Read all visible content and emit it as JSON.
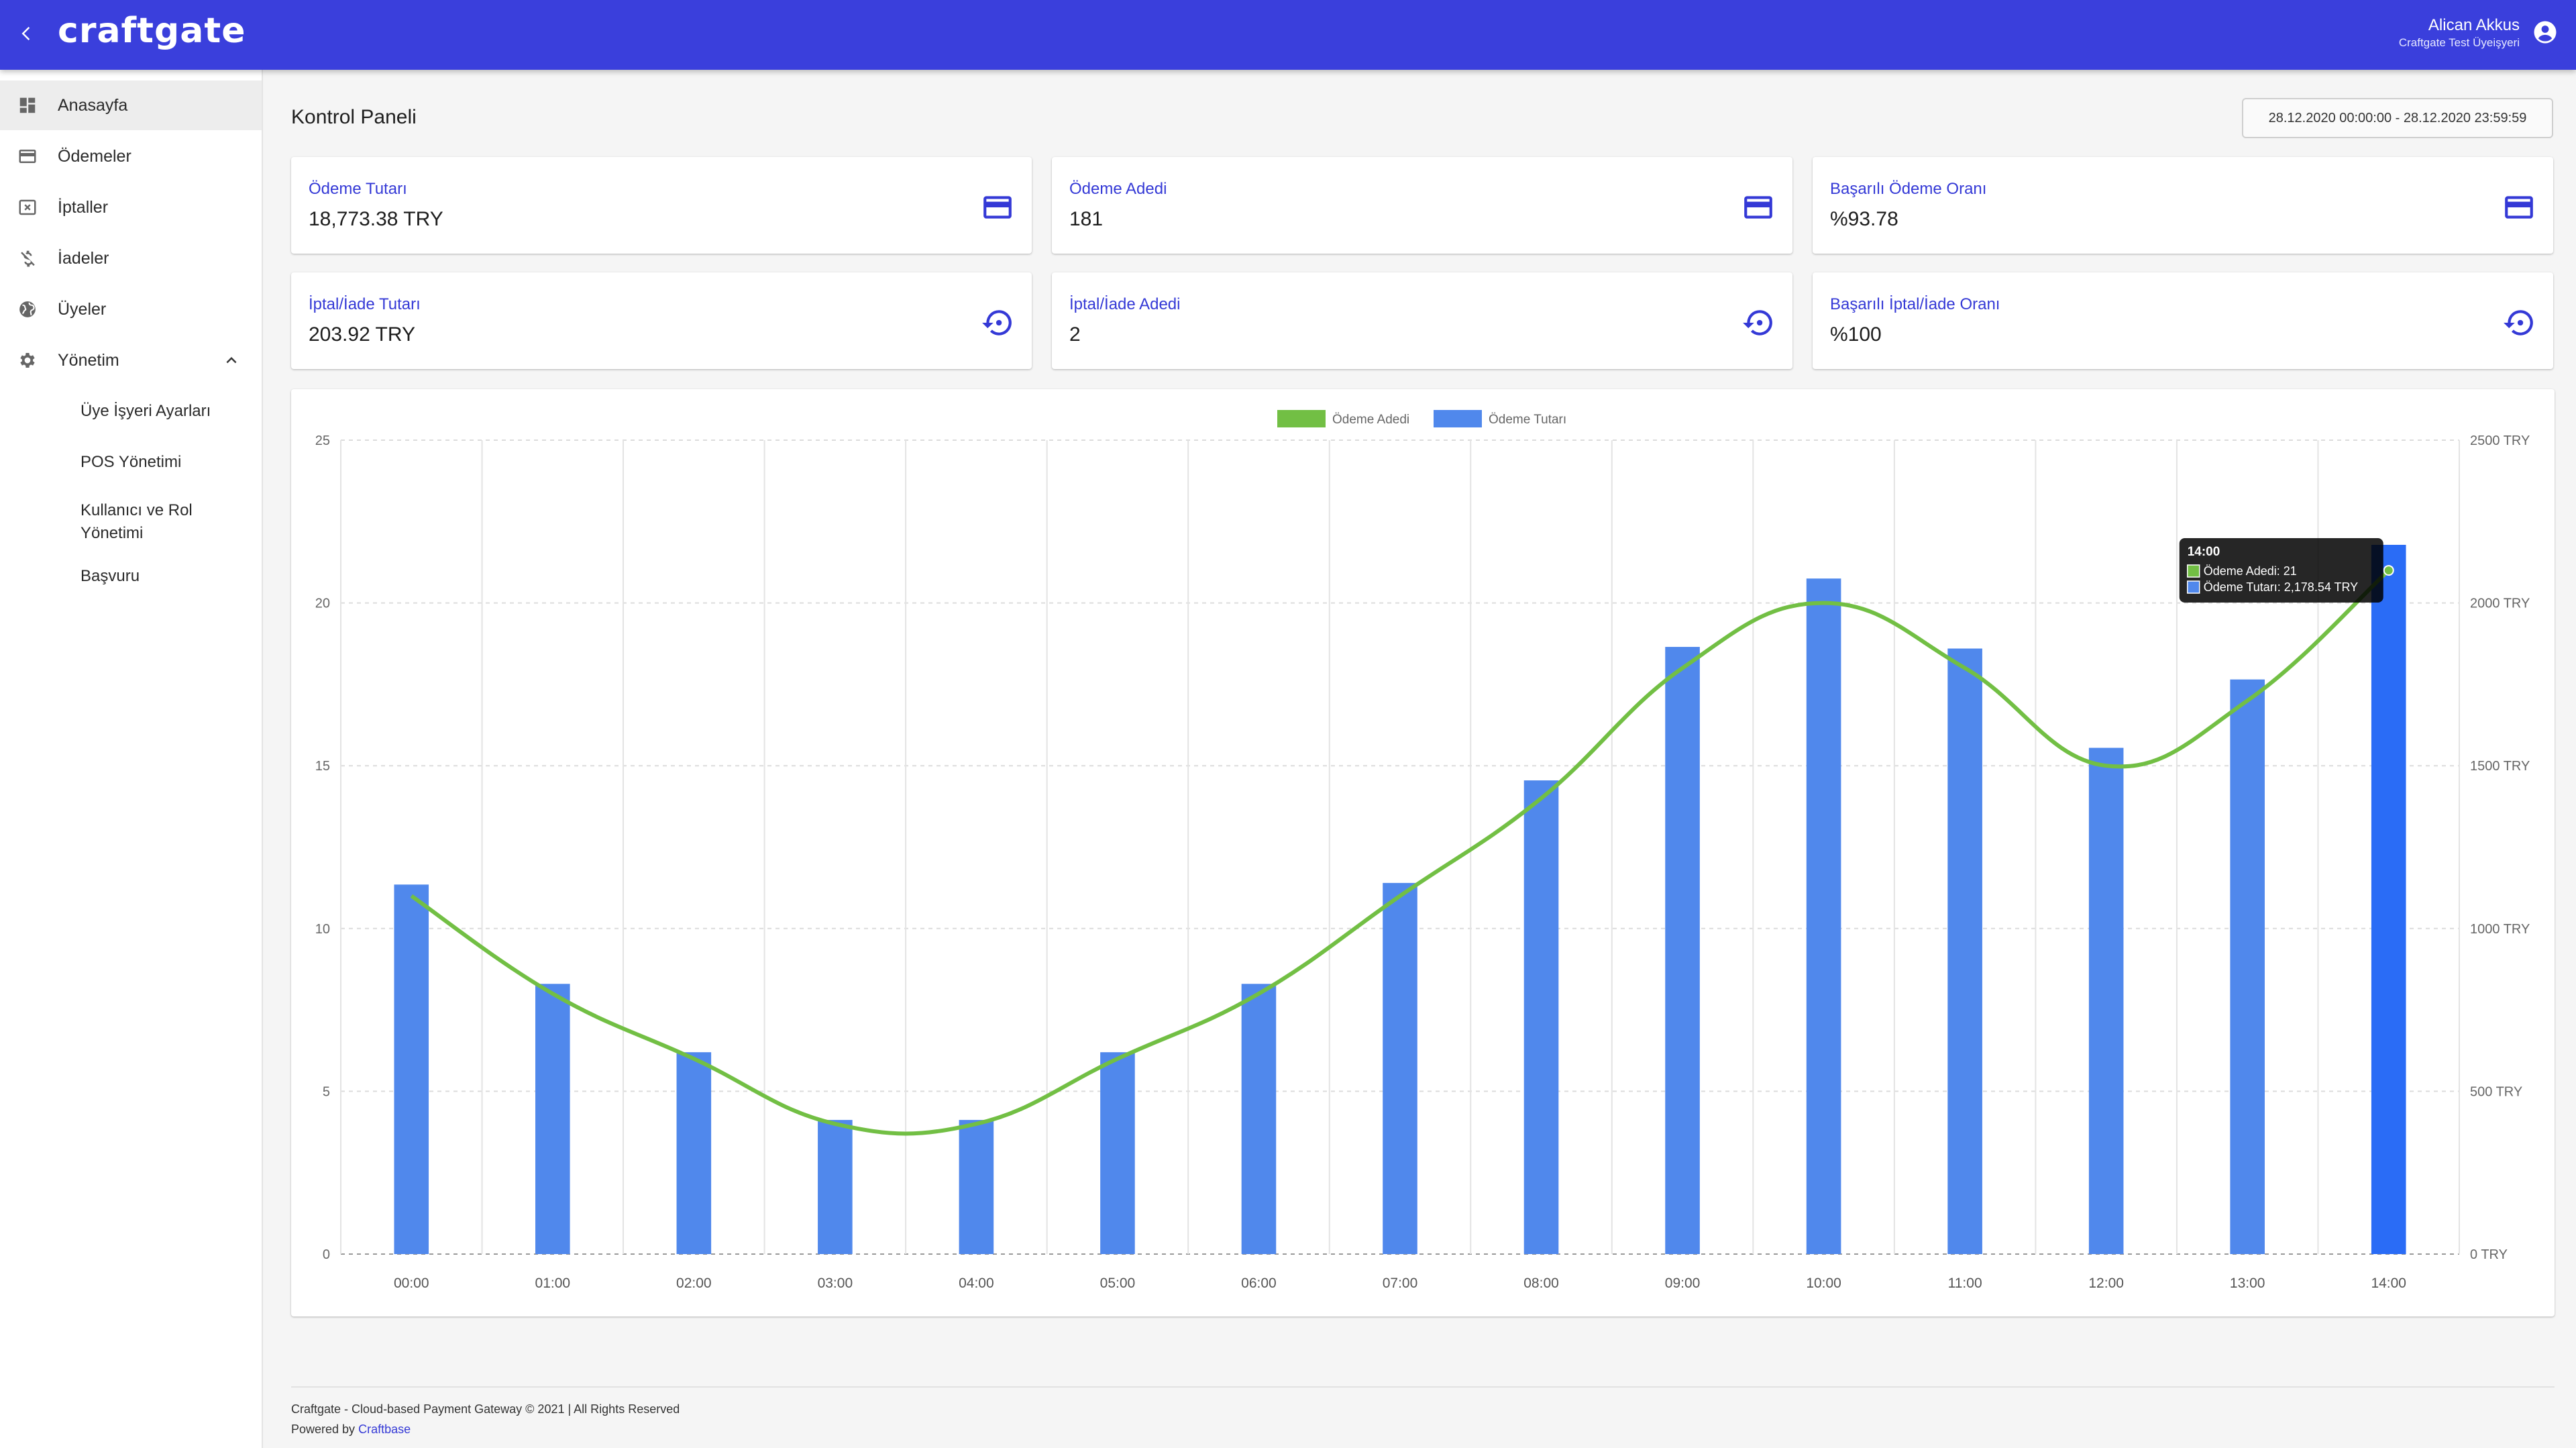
{
  "header": {
    "logo": "craftgate",
    "user_name": "Alican Akkus",
    "user_subtitle": "Craftgate Test Üyeişyeri"
  },
  "sidebar": {
    "items": [
      {
        "label": "Anasayfa",
        "icon": "dashboard-icon",
        "active": true
      },
      {
        "label": "Ödemeler",
        "icon": "credit-card-icon"
      },
      {
        "label": "İptaller",
        "icon": "cancel-box-icon"
      },
      {
        "label": "İadeler",
        "icon": "money-off-icon"
      },
      {
        "label": "Üyeler",
        "icon": "globe-icon"
      },
      {
        "label": "Yönetim",
        "icon": "gear-icon",
        "expanded": true
      }
    ],
    "subitems": [
      {
        "label": "Üye İşyeri Ayarları"
      },
      {
        "label": "POS Yönetimi"
      },
      {
        "label": "Kullanıcı ve Rol Yönetimi"
      },
      {
        "label": "Başvuru"
      }
    ]
  },
  "page": {
    "title": "Kontrol Paneli",
    "date_range": "28.12.2020 00:00:00 - 28.12.2020 23:59:59"
  },
  "cards": [
    {
      "title": "Ödeme Tutarı",
      "value": "18,773.38 TRY",
      "icon": "credit-card-icon"
    },
    {
      "title": "Ödeme Adedi",
      "value": "181",
      "icon": "credit-card-icon"
    },
    {
      "title": "Başarılı Ödeme Oranı",
      "value": "%93.78",
      "icon": "credit-card-icon"
    },
    {
      "title": "İptal/İade Tutarı",
      "value": "203.92 TRY",
      "icon": "restore-icon"
    },
    {
      "title": "İptal/İade Adedi",
      "value": "2",
      "icon": "restore-icon"
    },
    {
      "title": "Başarılı İptal/İade Oranı",
      "value": "%100",
      "icon": "restore-icon"
    }
  ],
  "chart_data": {
    "type": "bar",
    "categories": [
      "00:00",
      "01:00",
      "02:00",
      "03:00",
      "04:00",
      "05:00",
      "06:00",
      "07:00",
      "08:00",
      "09:00",
      "10:00",
      "11:00",
      "12:00",
      "13:00",
      "14:00"
    ],
    "series": [
      {
        "name": "Ödeme Adedi",
        "type": "line",
        "axis": "left",
        "color": "#72bf44",
        "values": [
          11,
          8,
          6,
          4,
          4,
          6,
          8,
          11,
          14,
          18,
          20,
          18,
          15,
          17,
          21
        ]
      },
      {
        "name": "Ödeme Tutarı",
        "type": "bar",
        "axis": "right",
        "color": "#5088ec",
        "values": [
          1135,
          830,
          620,
          412,
          412,
          620,
          830,
          1140,
          1455,
          1865,
          2075,
          1860,
          1555,
          1765,
          2178.54
        ]
      }
    ],
    "y_left": {
      "min": 0,
      "max": 25,
      "ticks": [
        "0",
        "5",
        "10",
        "15",
        "20",
        "25"
      ]
    },
    "y_right": {
      "min": 0,
      "max": 2500,
      "ticks": [
        "0 TRY",
        "500 TRY",
        "1000 TRY",
        "1500 TRY",
        "2000 TRY",
        "2500 TRY"
      ]
    },
    "legend": {
      "position": "top",
      "items": [
        "Ödeme Adedi",
        "Ödeme Tutarı"
      ]
    },
    "grid": true,
    "highlight_bar_color": "#2a6cf6",
    "tooltip": {
      "title": "14:00",
      "lines": [
        "Ödeme Adedi: 21",
        "Ödeme Tutarı: 2,178.54 TRY"
      ]
    }
  },
  "footer": {
    "line1": "Craftgate - Cloud-based Payment Gateway © 2021 | All Rights Reserved",
    "powered_prefix": "Powered by",
    "powered_link": "Craftbase"
  }
}
